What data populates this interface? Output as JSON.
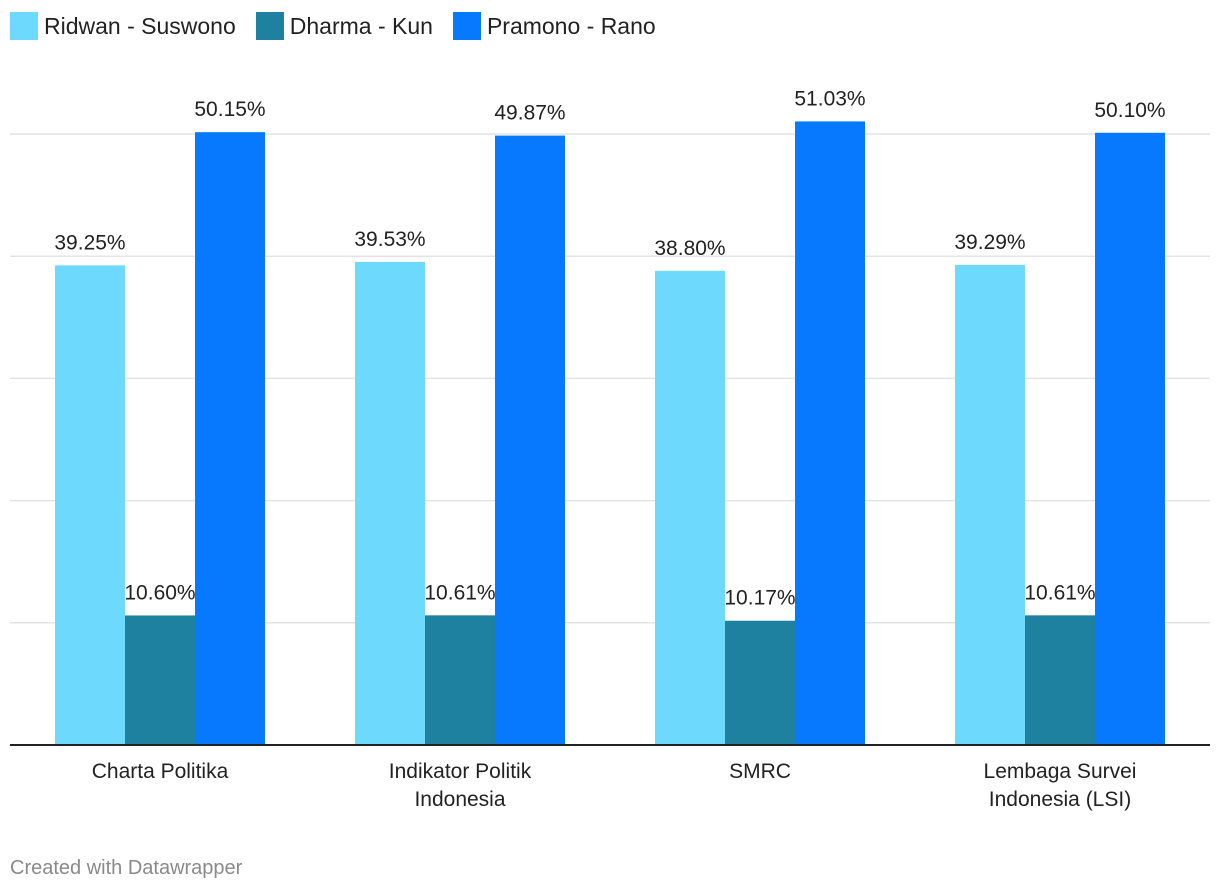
{
  "chart_data": {
    "type": "bar",
    "categories": [
      [
        "Charta Politika"
      ],
      [
        "Indikator Politik",
        "Indonesia"
      ],
      [
        "SMRC"
      ],
      [
        "Lembaga Survei",
        "Indonesia (LSI)"
      ]
    ],
    "series": [
      {
        "name": "Ridwan - Suswono",
        "color": "#6dd9fd",
        "values": [
          39.25,
          39.53,
          38.8,
          39.29
        ],
        "labels": [
          "39.25%",
          "39.53%",
          "38.80%",
          "39.29%"
        ]
      },
      {
        "name": "Dharma - Kun",
        "color": "#1e819f",
        "values": [
          10.6,
          10.61,
          10.17,
          10.61
        ],
        "labels": [
          "10.60%",
          "10.61%",
          "10.17%",
          "10.61%"
        ]
      },
      {
        "name": "Pramono - Rano",
        "color": "#0679ff",
        "values": [
          50.15,
          49.87,
          51.03,
          50.1
        ],
        "labels": [
          "50.15%",
          "49.87%",
          "51.03%",
          "50.10%"
        ]
      }
    ],
    "ylim": [
      0,
      50
    ],
    "gridlines": [
      10,
      20,
      30,
      40,
      50
    ],
    "grid": true,
    "legend_position": "top-left"
  },
  "footer": {
    "credit": "Created with Datawrapper"
  }
}
